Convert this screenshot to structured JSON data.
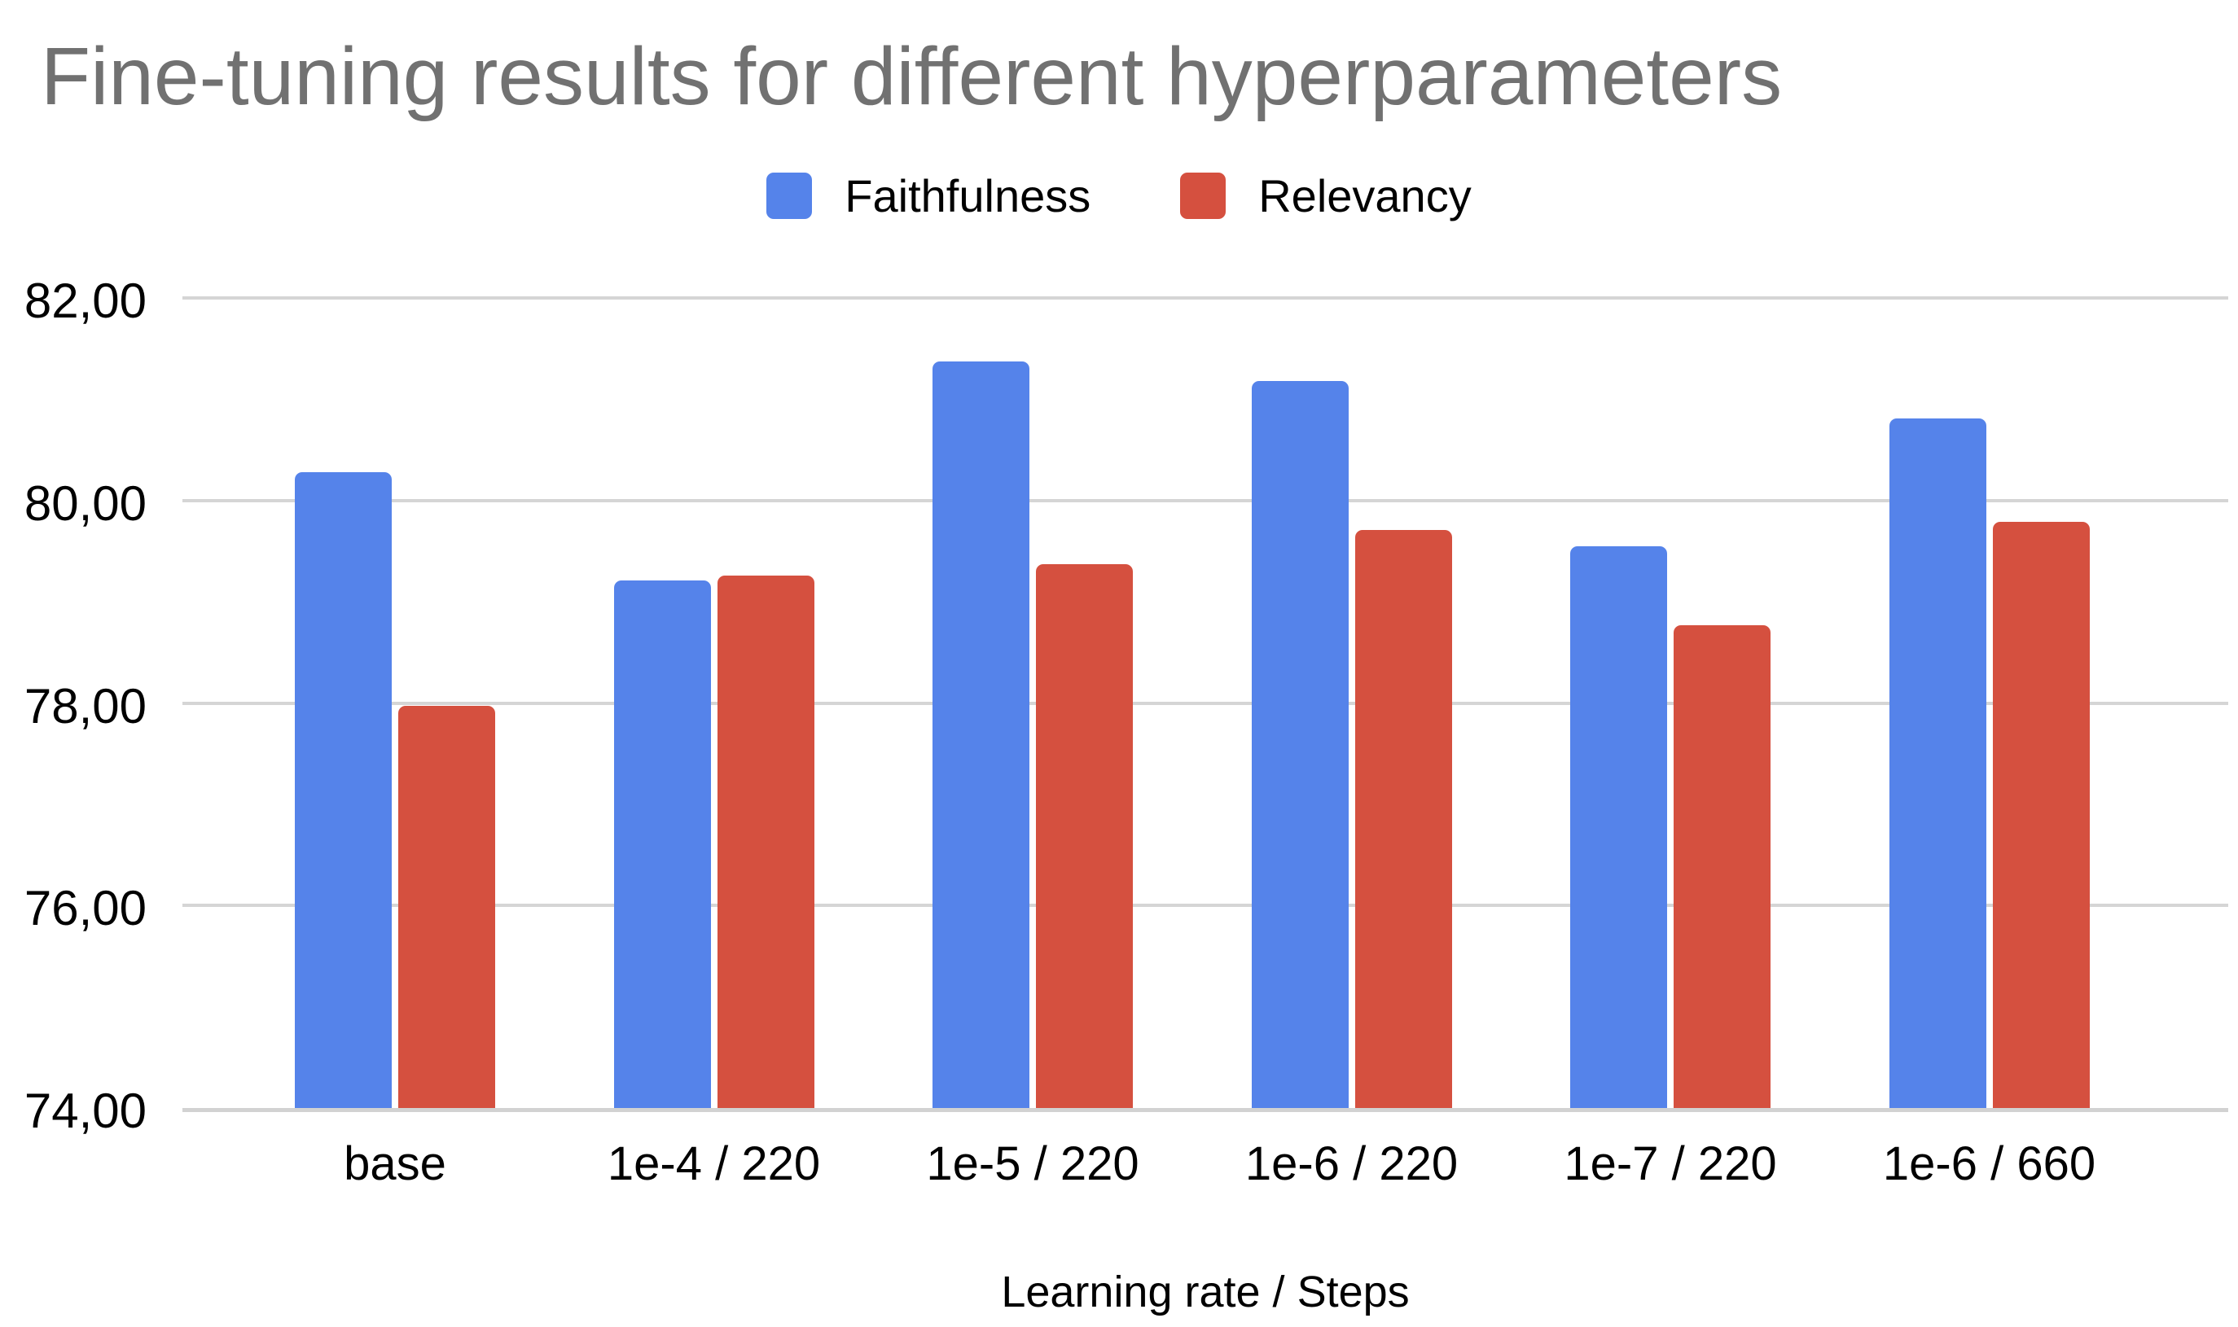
{
  "chart_data": {
    "type": "bar",
    "title": "Fine-tuning results for different hyperparameters",
    "xlabel": "Learning rate / Steps",
    "ylabel": "",
    "categories": [
      "base",
      "1e-4 / 220",
      "1e-5 / 220",
      "1e-6 / 220",
      "1e-7 / 220",
      "1e-6 / 660"
    ],
    "series": [
      {
        "name": "Faithfulness",
        "color": "#5583ea",
        "values": [
          80.28,
          79.21,
          81.37,
          81.18,
          79.55,
          80.81
        ]
      },
      {
        "name": "Relevancy",
        "color": "#d5503f",
        "values": [
          77.97,
          79.26,
          79.37,
          79.71,
          78.77,
          79.79
        ]
      }
    ],
    "ylim": [
      74,
      82
    ],
    "yticks": [
      {
        "value": 82,
        "label": "82,00"
      },
      {
        "value": 80,
        "label": "80,00"
      },
      {
        "value": 78,
        "label": "78,00"
      },
      {
        "value": 76,
        "label": "76,00"
      },
      {
        "value": 74,
        "label": "74,00"
      }
    ],
    "grid": true,
    "legend_position": "top",
    "decimal_separator": ",",
    "colors": {
      "title_text": "#717171",
      "axis_text": "#000000",
      "gridline": "#d5d5d5",
      "baseline": "#d2d2d2",
      "background": "#ffffff"
    }
  }
}
